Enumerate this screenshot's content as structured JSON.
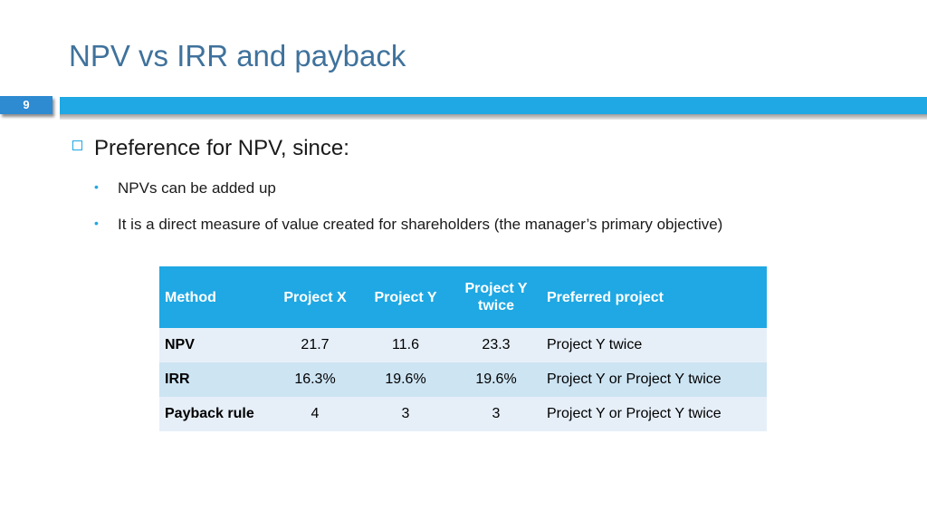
{
  "slide": {
    "title": "NPV vs IRR and payback",
    "number": "9"
  },
  "bullets": {
    "main": "Preference for NPV, since:",
    "sub": [
      "NPVs can be added up",
      "It is a direct measure of value created for shareholders (the manager’s primary objective)"
    ]
  },
  "table": {
    "headers": [
      "Method",
      "Project X",
      "Project Y",
      "Project Y twice",
      "Preferred project"
    ],
    "rows": [
      [
        "NPV",
        "21.7",
        "11.6",
        "23.3",
        "Project Y twice"
      ],
      [
        "IRR",
        "16.3%",
        "19.6%",
        "19.6%",
        "Project Y or Project Y twice"
      ],
      [
        "Payback rule",
        "4",
        "3",
        "3",
        "Project Y or Project Y twice"
      ]
    ]
  },
  "colors": {
    "title": "#3f729c",
    "accent_bar": "#1fa8e3",
    "slide_number_box": "#2e8ad1",
    "table_header": "#1fa8e3",
    "row_light": "#e6eff8",
    "row_mid": "#cde4f3"
  }
}
